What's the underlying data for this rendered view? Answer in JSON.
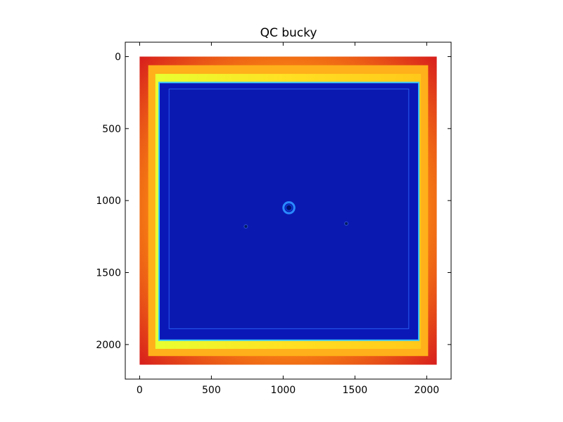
{
  "chart_data": {
    "type": "heatmap",
    "title": "QC bucky",
    "xlabel": "",
    "ylabel": "",
    "xlim": [
      -100,
      2170
    ],
    "ylim": [
      2240,
      -100
    ],
    "image_extent": {
      "x": [
        0,
        2070
      ],
      "y": [
        2140,
        0
      ]
    },
    "xticks": [
      0,
      500,
      1000,
      1500,
      2000
    ],
    "yticks": [
      0,
      500,
      1000,
      1500,
      2000
    ],
    "xtick_labels": [
      "0",
      "500",
      "1000",
      "1500",
      "2000"
    ],
    "ytick_labels": [
      "0",
      "500",
      "1000",
      "1500",
      "2000"
    ],
    "colormap": "jet",
    "grid": false,
    "regions": [
      {
        "name": "outer border",
        "x": [
          0,
          2070
        ],
        "y": [
          0,
          2140
        ],
        "level": "high",
        "color": "#e8401c"
      },
      {
        "name": "inner glow",
        "x": [
          60,
          2010
        ],
        "y": [
          60,
          2080
        ],
        "level": "medium-high",
        "color": "#ffb01a"
      },
      {
        "name": "bright band",
        "x": [
          110,
          1960
        ],
        "y": [
          120,
          2030
        ],
        "level": "medium",
        "color": "#f4f23a"
      },
      {
        "name": "detector plate",
        "x": [
          135,
          1945
        ],
        "y": [
          180,
          1970
        ],
        "level": "low",
        "color": "#0a18b8"
      },
      {
        "name": "inner plate",
        "x": [
          205,
          1875
        ],
        "y": [
          225,
          1890
        ],
        "level": "low",
        "color": "#0a1ab0"
      }
    ],
    "features": [
      {
        "name": "center ring",
        "x": 1040,
        "y": 1050,
        "radius": 38,
        "color": "#1e6cff"
      },
      {
        "name": "small dot left",
        "x": 740,
        "y": 1180,
        "radius": 9,
        "color": "#001a60"
      },
      {
        "name": "small dot right",
        "x": 1440,
        "y": 1160,
        "radius": 9,
        "color": "#001a60"
      }
    ]
  }
}
